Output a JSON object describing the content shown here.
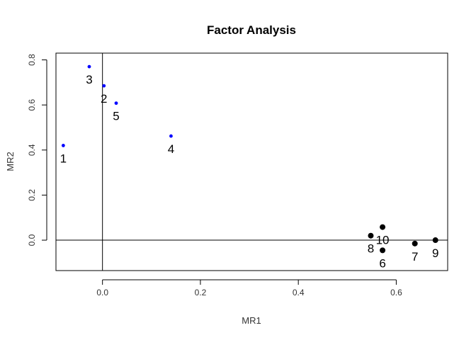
{
  "chart_data": {
    "type": "scatter",
    "title": "Factor Analysis",
    "xlabel": "MR1",
    "ylabel": "MR2",
    "xlim": [
      -0.095,
      0.705
    ],
    "ylim": [
      -0.135,
      0.83
    ],
    "x_ticks": [
      0.0,
      0.2,
      0.4,
      0.6
    ],
    "x_tick_labels": [
      "0.0",
      "0.2",
      "0.4",
      "0.6"
    ],
    "y_ticks": [
      0.0,
      0.2,
      0.4,
      0.6,
      0.8
    ],
    "y_tick_labels": [
      "0.0",
      "0.2",
      "0.4",
      "0.6",
      "0.8"
    ],
    "reference_lines": {
      "x": 0,
      "y": 0
    },
    "grid": false,
    "legend": "none",
    "colors": {
      "group_blue": "#0000ff",
      "group_black": "#000000"
    },
    "points": [
      {
        "label": "1",
        "x": -0.08,
        "y": 0.42,
        "color": "#0000ff",
        "size": "small"
      },
      {
        "label": "2",
        "x": 0.003,
        "y": 0.685,
        "color": "#0000ff",
        "size": "small"
      },
      {
        "label": "3",
        "x": -0.027,
        "y": 0.77,
        "color": "#0000ff",
        "size": "small"
      },
      {
        "label": "4",
        "x": 0.14,
        "y": 0.462,
        "color": "#0000ff",
        "size": "small"
      },
      {
        "label": "5",
        "x": 0.028,
        "y": 0.608,
        "color": "#0000ff",
        "size": "small"
      },
      {
        "label": "6",
        "x": 0.572,
        "y": -0.045,
        "color": "#000000",
        "size": "large"
      },
      {
        "label": "7",
        "x": 0.638,
        "y": -0.015,
        "color": "#000000",
        "size": "large"
      },
      {
        "label": "8",
        "x": 0.548,
        "y": 0.02,
        "color": "#000000",
        "size": "large"
      },
      {
        "label": "9",
        "x": 0.68,
        "y": 0.0,
        "color": "#000000",
        "size": "large"
      },
      {
        "label": "10",
        "x": 0.572,
        "y": 0.058,
        "color": "#000000",
        "size": "large"
      }
    ]
  }
}
